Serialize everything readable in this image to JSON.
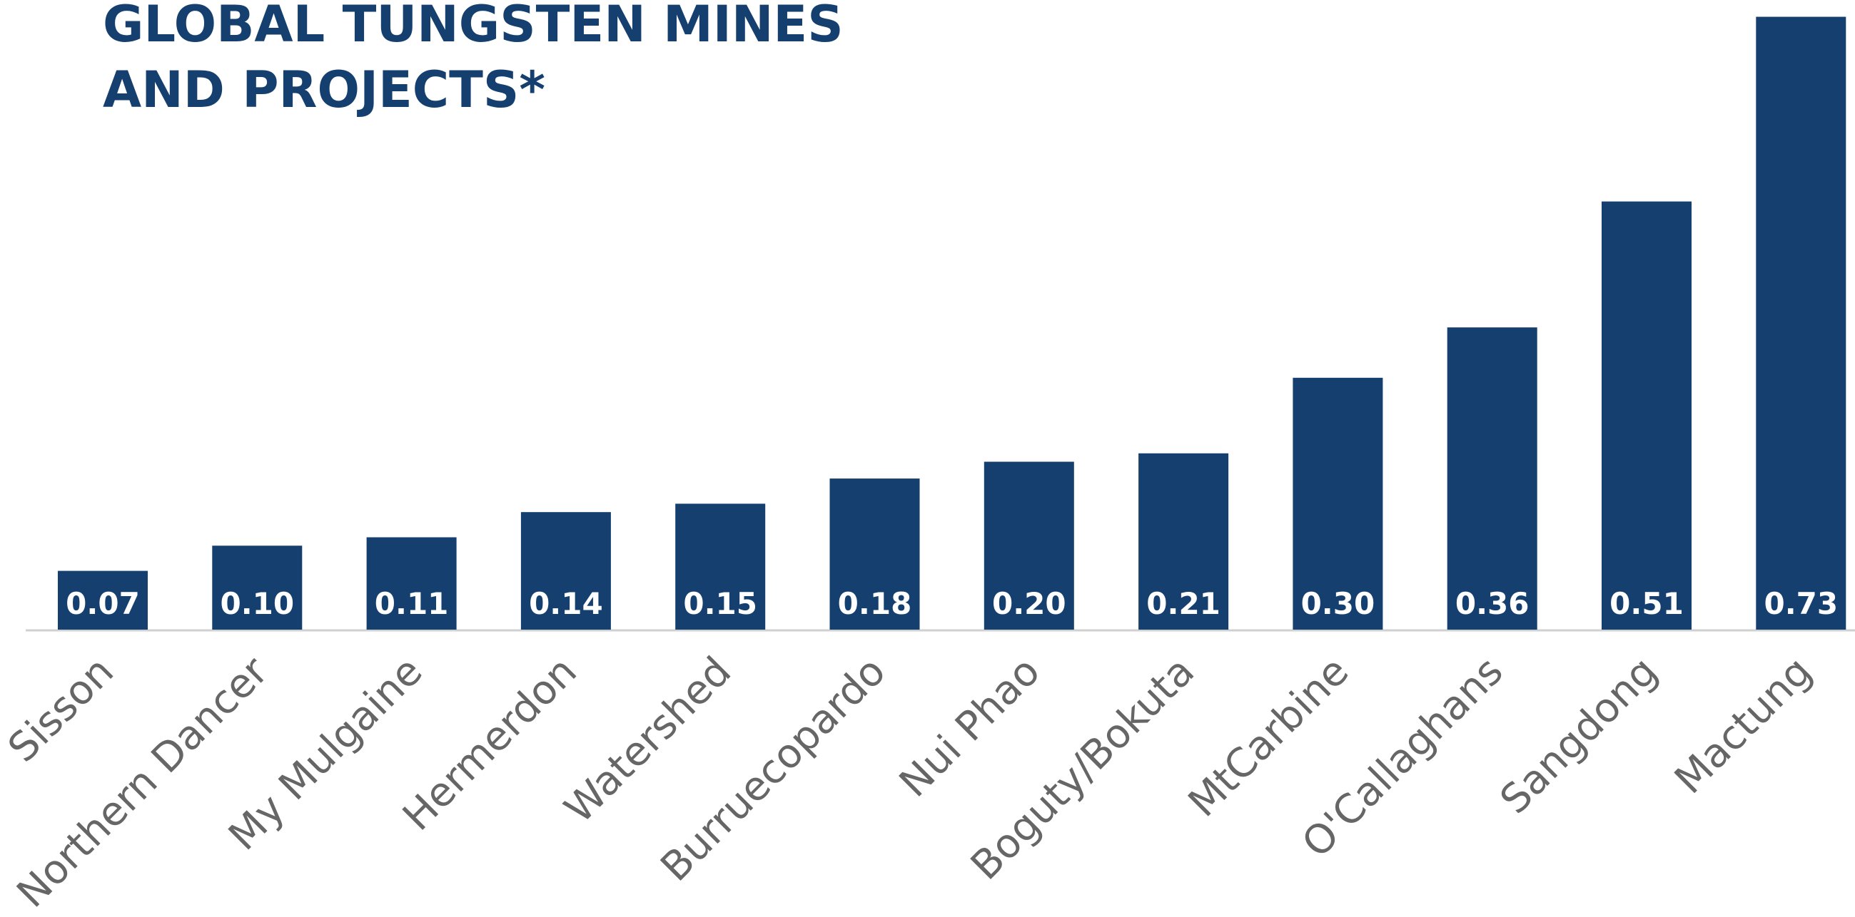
{
  "chart_data": {
    "type": "bar",
    "title": [
      "GLOBAL TUNGSTEN MINES",
      "AND PROJECTS*"
    ],
    "categories": [
      "Sisson",
      "Northern Dancer",
      "My Mulgaine",
      "Hermerdon",
      "Watershed",
      "Burruecopardo",
      "Nui Phao",
      "Boguty/Bokuta",
      "MtCarbine",
      "O'Callaghans",
      "Sangdong",
      "Mactung"
    ],
    "values": [
      0.07,
      0.1,
      0.11,
      0.14,
      0.15,
      0.18,
      0.2,
      0.21,
      0.3,
      0.36,
      0.51,
      0.73
    ],
    "value_labels": [
      "0.07",
      "0.10",
      "0.11",
      "0.14",
      "0.15",
      "0.18",
      "0.20",
      "0.21",
      "0.30",
      "0.36",
      "0.51",
      "0.73"
    ],
    "color": "#143f6e",
    "ylim": [
      0,
      0.75
    ]
  }
}
